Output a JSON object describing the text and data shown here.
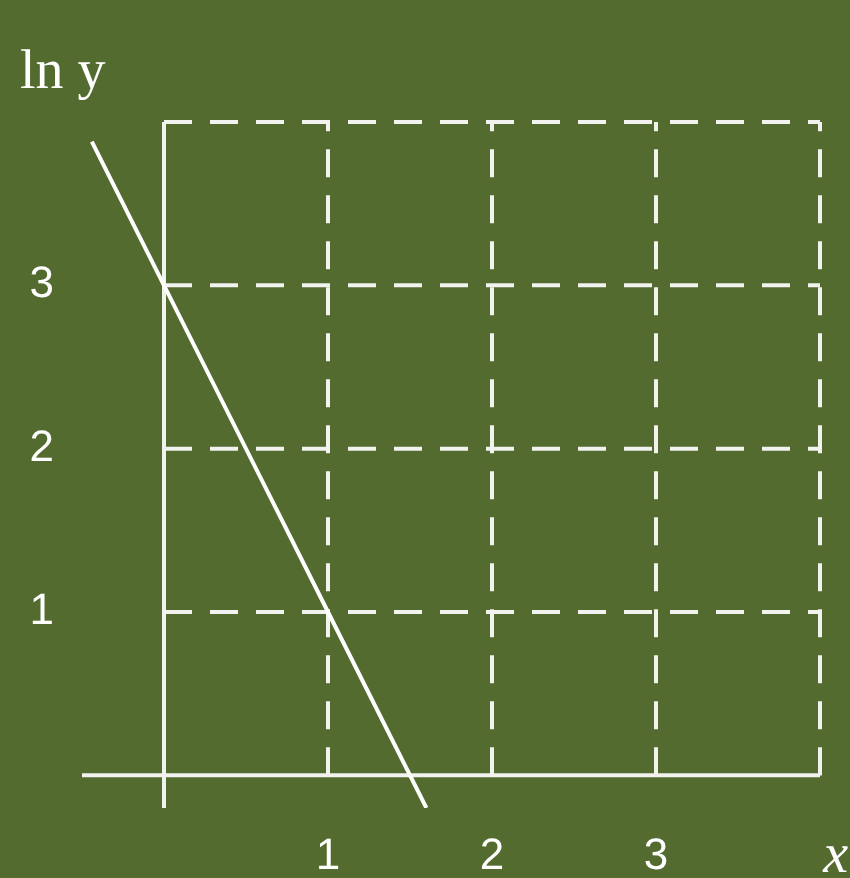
{
  "chart_data": {
    "type": "line",
    "xlabel": "x",
    "ylabel": "ln y",
    "x": [
      -0.44,
      0,
      1,
      1.6
    ],
    "series": [
      {
        "color": "#ffffff",
        "values": [
          3.88,
          3,
          1,
          -0.2
        ]
      }
    ],
    "xlim": [
      -0.5,
      4
    ],
    "ylim": [
      -0.2,
      4
    ],
    "xticks": [
      {
        "value": 0,
        "label": null
      },
      1,
      2,
      3,
      {
        "value": 4,
        "label": null
      }
    ],
    "yticks": [
      {
        "value": 0,
        "label": null
      },
      1,
      2,
      3,
      {
        "value": 4,
        "label": null
      }
    ],
    "grid": true,
    "legend": false,
    "marker": "none",
    "line_style": "solid"
  }
}
